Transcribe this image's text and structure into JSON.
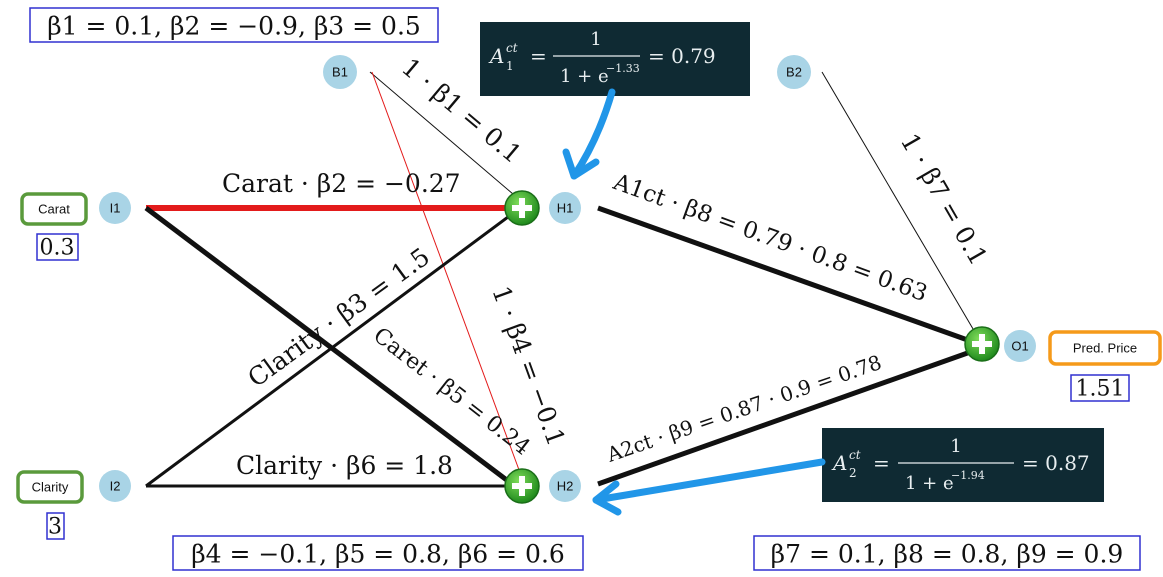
{
  "params": {
    "top_left": "β1 = 0.1, β2 = −0.9, β3 = 0.5",
    "bottom_mid": "β4 = −0.1, β5 = 0.8, β6 = 0.6",
    "bottom_right": "β7 = 0.1, β8 = 0.8, β9 = 0.9"
  },
  "nodes": {
    "b1": "B1",
    "b2": "B2",
    "i1": "I1",
    "i2": "I2",
    "h1": "H1",
    "h2": "H2",
    "o1": "O1"
  },
  "inputs": {
    "carat_label": "Carat",
    "carat_value": "0.3",
    "clarity_label": "Clarity",
    "clarity_value": "3"
  },
  "output": {
    "label": "Pred. Price",
    "value": "1.51"
  },
  "formulas": {
    "h1": {
      "lhs": "A",
      "sup": "ct",
      "sub": "1",
      "num": "1",
      "den_base": "1 + e",
      "den_exp": "−1.33",
      "result": "= 0.79"
    },
    "h2": {
      "lhs": "A",
      "sup": "ct",
      "sub": "2",
      "num": "1",
      "den_base": "1 + e",
      "den_exp": "−1.94",
      "result": "= 0.87"
    }
  },
  "edges": {
    "b1_h1": "1 · β1 = 0.1",
    "i1_h1": "Carat · β2 = −0.27",
    "i2_h1": "Clarity · β3 = 1.5",
    "b1_h2": "1 · β4 = −0.1",
    "i1_h2": "Caret · β5 = 0.24",
    "i2_h2": "Clarity · β6 = 1.8",
    "b2_o1": "1 · β7 = 0.1",
    "h1_o1": "A1ct · β8 = 0.79 · 0.8 = 0.63",
    "h2_o1": "A2ct · β9 = 0.87 · 0.9 = 0.78"
  },
  "colors": {
    "edge_black": "#111111",
    "edge_red": "#e31b1b",
    "input_box": "#5a9a3c",
    "output_box": "#f59a1a",
    "node": "#a9d4e6",
    "plus_node": "#2fa12a",
    "arrow": "#2196e8",
    "formula_bg": "#0f2a33",
    "param_border": "#3030d0"
  }
}
